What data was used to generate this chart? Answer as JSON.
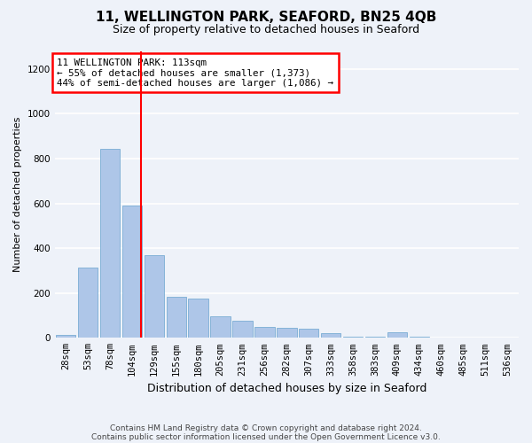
{
  "title": "11, WELLINGTON PARK, SEAFORD, BN25 4QB",
  "subtitle": "Size of property relative to detached houses in Seaford",
  "xlabel": "Distribution of detached houses by size in Seaford",
  "ylabel": "Number of detached properties",
  "footer_line1": "Contains HM Land Registry data © Crown copyright and database right 2024.",
  "footer_line2": "Contains public sector information licensed under the Open Government Licence v3.0.",
  "annotation_text": "11 WELLINGTON PARK: 113sqm\n← 55% of detached houses are smaller (1,373)\n44% of semi-detached houses are larger (1,086) →",
  "bar_color": "#aec6e8",
  "bar_edge_color": "#7aadd4",
  "vline_color": "red",
  "background_color": "#eef2f9",
  "grid_color": "white",
  "categories": [
    "28sqm",
    "53sqm",
    "78sqm",
    "104sqm",
    "129sqm",
    "155sqm",
    "180sqm",
    "205sqm",
    "231sqm",
    "256sqm",
    "282sqm",
    "307sqm",
    "333sqm",
    "358sqm",
    "383sqm",
    "409sqm",
    "434sqm",
    "460sqm",
    "485sqm",
    "511sqm",
    "536sqm"
  ],
  "bar_values": [
    15,
    315,
    843,
    590,
    370,
    185,
    175,
    95,
    75,
    50,
    45,
    40,
    20,
    5,
    5,
    25,
    5,
    0,
    0,
    0,
    0
  ],
  "ylim": [
    0,
    1280
  ],
  "yticks": [
    0,
    200,
    400,
    600,
    800,
    1000,
    1200
  ],
  "vline_x": 3.42,
  "annotation_box_color": "white",
  "annotation_border_color": "red",
  "title_fontsize": 11,
  "subtitle_fontsize": 9,
  "ylabel_fontsize": 8,
  "xlabel_fontsize": 9,
  "tick_fontsize": 7.5,
  "annotation_fontsize": 7.8,
  "footer_fontsize": 6.5
}
